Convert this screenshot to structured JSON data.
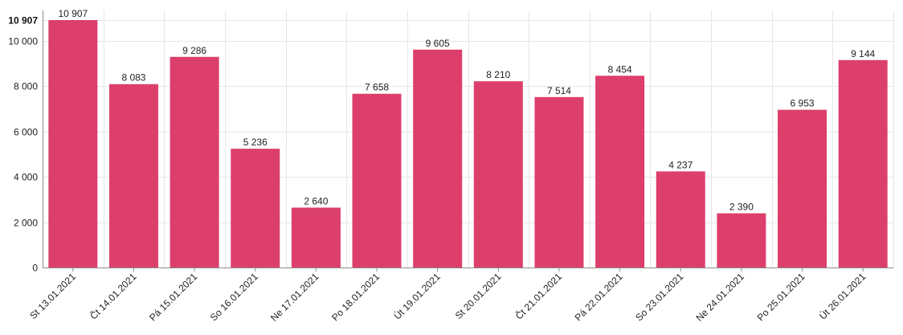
{
  "chart_data": {
    "type": "bar",
    "categories": [
      "St 13.01.2021",
      "Čt 14.01.2021",
      "Pá 15.01.2021",
      "So 16.01.2021",
      "Ne 17.01.2021",
      "Po 18.01.2021",
      "Út 19.01.2021",
      "St 20.01.2021",
      "Čt 21.01.2021",
      "Pá 22.01.2021",
      "So 23.01.2021",
      "Ne 24.01.2021",
      "Po 25.01.2021",
      "Út 26.01.2021"
    ],
    "values": [
      10907,
      8083,
      9286,
      5236,
      2640,
      7658,
      9605,
      8210,
      7514,
      8454,
      4237,
      2390,
      6953,
      9144
    ],
    "value_labels": [
      "10 907",
      "8 083",
      "9 286",
      "5 236",
      "2 640",
      "7 658",
      "9 605",
      "8 210",
      "7 514",
      "8 454",
      "4 237",
      "2 390",
      "6 953",
      "9 144"
    ],
    "y_ticks": [
      0,
      2000,
      4000,
      6000,
      8000,
      10000
    ],
    "y_tick_labels": [
      "0",
      "2 000",
      "4 000",
      "6 000",
      "8 000",
      "10 000"
    ],
    "y_max_label": "10 907",
    "ylim": [
      0,
      10907
    ],
    "grid": true,
    "bar_color": "#dc3f6c",
    "title": "",
    "xlabel": "",
    "ylabel": ""
  }
}
